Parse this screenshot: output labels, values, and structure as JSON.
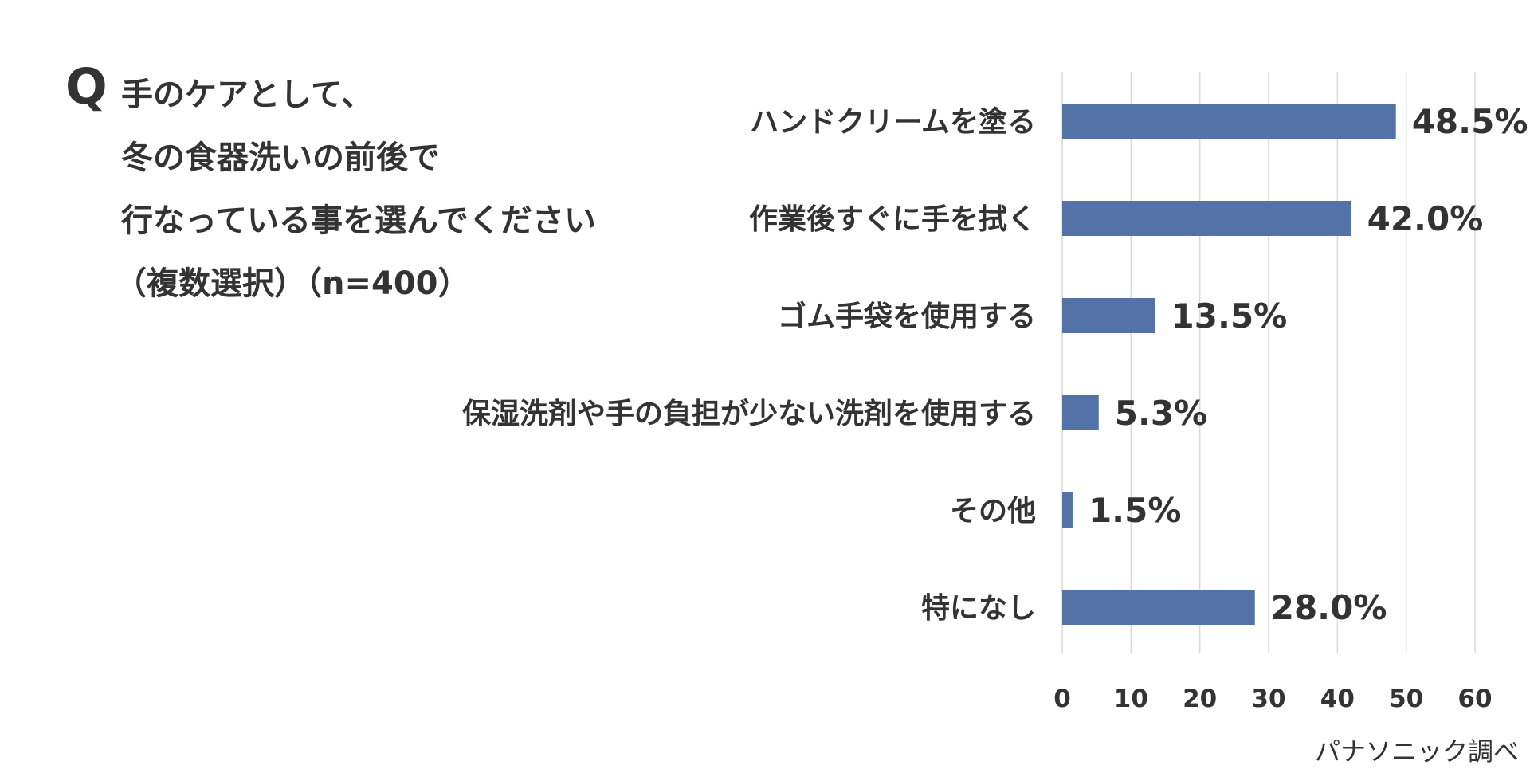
{
  "question": {
    "mark": "Q",
    "lines": [
      "手のケアとして、",
      "冬の食器洗いの前後で",
      "行なっている事を選んでください",
      "（複数選択）（n=400）"
    ]
  },
  "source": "パナソニック調べ",
  "colors": {
    "bar": "#5373a8",
    "grid": "#d9d9d9",
    "text": "#333333"
  },
  "chart_data": {
    "type": "bar",
    "orientation": "horizontal",
    "categories": [
      "ハンドクリームを塗る",
      "作業後すぐに手を拭く",
      "ゴム手袋を使用する",
      "保湿洗剤や手の負担が少ない洗剤を使用する",
      "その他",
      "特になし"
    ],
    "values": [
      48.5,
      42.0,
      13.5,
      5.3,
      1.5,
      28.0
    ],
    "data_labels": [
      "48.5%",
      "42.0%",
      "13.5%",
      "5.3%",
      "1.5%",
      "28.0%"
    ],
    "xlim": [
      0,
      60
    ],
    "xticks": [
      0,
      10,
      20,
      30,
      40,
      50,
      60
    ],
    "grid": "vertical",
    "title": "",
    "xlabel": "",
    "ylabel": ""
  }
}
